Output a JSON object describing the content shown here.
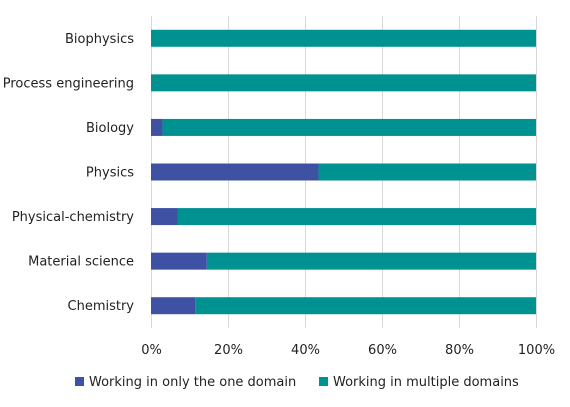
{
  "chart_data": {
    "type": "bar",
    "orientation": "horizontal",
    "stacked": "percent",
    "categories": [
      "Biophysics",
      "Process engineering",
      "Biology",
      "Physics",
      "Physical-chemistry",
      "Material science",
      "Chemistry"
    ],
    "series": [
      {
        "name": "Working in only the one domain",
        "color": "#3f51a3",
        "values": [
          0,
          0,
          3,
          43.5,
          7,
          14.5,
          11.5
        ]
      },
      {
        "name": "Working in multiple domains",
        "color": "#009191",
        "values": [
          100,
          100,
          97,
          56.5,
          93,
          85.5,
          88.5
        ]
      }
    ],
    "xlim": [
      0,
      100
    ],
    "xticks": [
      0,
      20,
      40,
      60,
      80,
      100
    ],
    "xtick_labels": [
      "0%",
      "20%",
      "40%",
      "60%",
      "80%",
      "100%"
    ],
    "grid": "vertical",
    "legend": "bottom"
  }
}
